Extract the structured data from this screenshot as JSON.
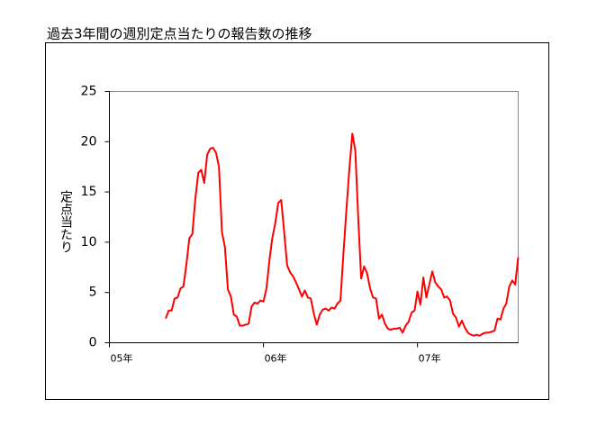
{
  "chart_data": {
    "type": "line",
    "title": "過去3年間の週別定点当たりの報告数の推移",
    "y_label": "定点当たり",
    "x": [
      19,
      20,
      21,
      22,
      23,
      24,
      25,
      26,
      27,
      28,
      29,
      30,
      31,
      32,
      33,
      34,
      35,
      36,
      37,
      38,
      39,
      40,
      41,
      42,
      43,
      44,
      45,
      46,
      47,
      48,
      49,
      50,
      51,
      52,
      53,
      54,
      55,
      56,
      57,
      58,
      59,
      60,
      61,
      62,
      63,
      64,
      65,
      66,
      67,
      68,
      69,
      70,
      71,
      72,
      73,
      74,
      75,
      76,
      77,
      78,
      79,
      80,
      81,
      82,
      83,
      84,
      85,
      86,
      87,
      88,
      89,
      90,
      91,
      92,
      93,
      94,
      95,
      96,
      97,
      98,
      99,
      100,
      101,
      102,
      103,
      104,
      105,
      106,
      107,
      108,
      109,
      110,
      111,
      112,
      113,
      114,
      115,
      116,
      117,
      118,
      119,
      120,
      121,
      122,
      123,
      124,
      125,
      126,
      127,
      128,
      129,
      130,
      131,
      132,
      133,
      134,
      135,
      136,
      137,
      138
    ],
    "series": [
      {
        "color": "#ff0000",
        "values": [
          2.4,
          3.2,
          3.2,
          4.4,
          4.5,
          5.4,
          5.6,
          7.8,
          10.4,
          10.8,
          14.3,
          16.9,
          17.2,
          15.9,
          18.7,
          19.3,
          19.4,
          18.9,
          17.5,
          11.0,
          9.5,
          5.3,
          4.6,
          2.8,
          2.6,
          1.7,
          1.7,
          1.8,
          1.9,
          3.6,
          4.0,
          3.9,
          4.2,
          4.1,
          5.4,
          8.2,
          10.4,
          11.9,
          13.9,
          14.2,
          11.0,
          7.7,
          7.0,
          6.6,
          6.0,
          5.3,
          4.6,
          5.2,
          4.5,
          4.4,
          2.9,
          1.8,
          2.8,
          3.3,
          3.4,
          3.2,
          3.5,
          3.4,
          3.9,
          4.2,
          8.9,
          13.2,
          17.3,
          20.8,
          19.1,
          12.5,
          6.4,
          7.6,
          6.9,
          5.4,
          4.5,
          4.4,
          2.4,
          2.8,
          1.9,
          1.4,
          1.3,
          1.4,
          1.4,
          1.5,
          1.0,
          1.7,
          2.1,
          3.0,
          3.2,
          5.1,
          3.8,
          6.5,
          4.5,
          5.8,
          7.1,
          6.0,
          5.6,
          5.3,
          4.5,
          4.6,
          4.2,
          2.9,
          2.5,
          1.6,
          2.2,
          1.5,
          1.0,
          0.8,
          0.7,
          0.8,
          0.7,
          0.9,
          1.0,
          1.0,
          1.1,
          1.2,
          2.4,
          2.3,
          3.4,
          3.9,
          5.6,
          6.2,
          5.8,
          8.5
        ]
      }
    ],
    "xlim": [
      0,
      138
    ],
    "xticks": [
      {
        "value": 0,
        "label": "05年"
      },
      {
        "value": 52,
        "label": "06年"
      },
      {
        "value": 104,
        "label": "07年"
      }
    ],
    "ylim": [
      0,
      25
    ],
    "yticks": [
      0,
      5,
      10,
      15,
      20,
      25
    ],
    "grid": false
  }
}
